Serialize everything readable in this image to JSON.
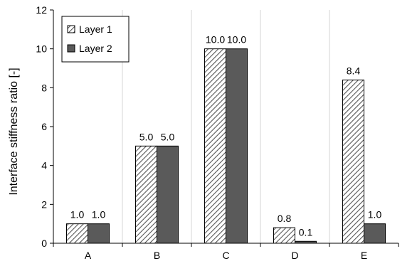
{
  "chart_data": {
    "type": "bar",
    "title": "",
    "xlabel": "",
    "ylabel": "Interface  stiffness ratio [-]",
    "categories": [
      "A",
      "B",
      "C",
      "D",
      "E"
    ],
    "series": [
      {
        "name": "Layer 1",
        "values": [
          1.0,
          5.0,
          10.0,
          0.8,
          8.4
        ],
        "labels": [
          "1.0",
          "5.0",
          "10.0",
          "0.8",
          "8.4"
        ],
        "fill": "hatched",
        "color": "#4d4d4d"
      },
      {
        "name": "Layer 2",
        "values": [
          1.0,
          5.0,
          10.0,
          0.1,
          1.0
        ],
        "labels": [
          "1.0",
          "5.0",
          "10.0",
          "0.1",
          "1.0"
        ],
        "fill": "solid",
        "color": "#5a5a5a"
      }
    ],
    "ylim": [
      0,
      12
    ],
    "yticks": [
      "0",
      "2",
      "4",
      "6",
      "8",
      "10",
      "12"
    ],
    "grid": "vertical",
    "legend_position": "top-left"
  }
}
